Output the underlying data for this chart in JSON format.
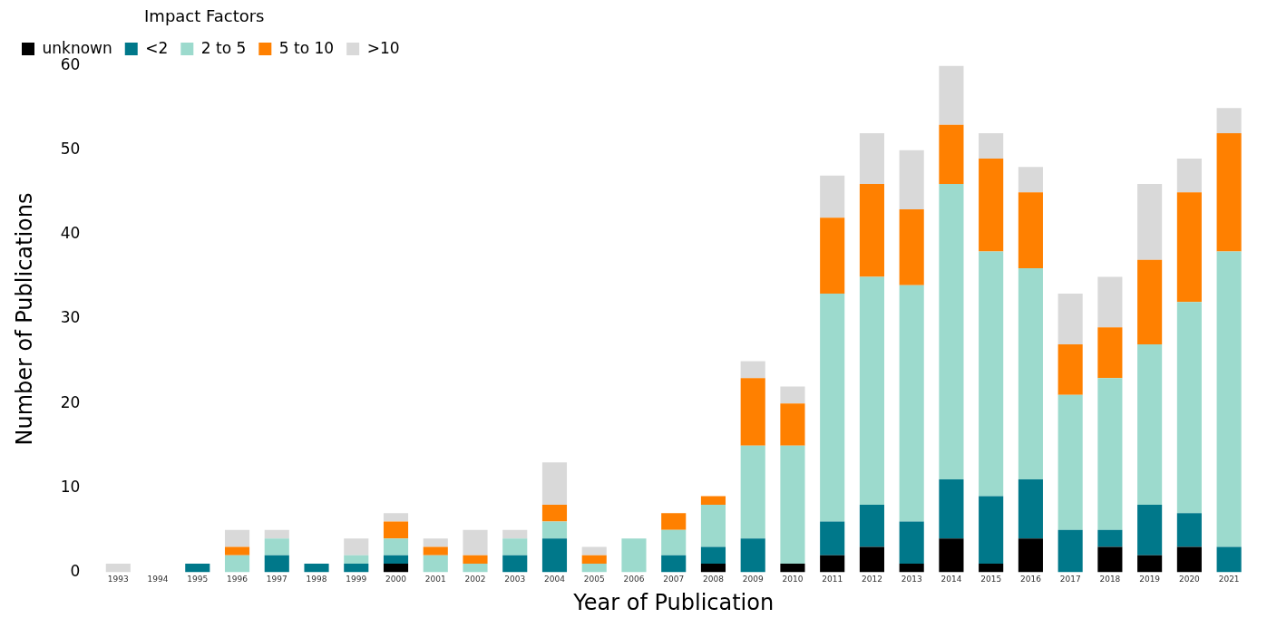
{
  "chart_data": {
    "type": "bar",
    "stacked": true,
    "xlabel": "Year of Publication",
    "ylabel": "Number of Publications",
    "legend_title": "Impact Factors",
    "legend": "top left",
    "grid": false,
    "categories": [
      "1993",
      "1994",
      "1995",
      "1996",
      "1997",
      "1998",
      "1999",
      "2000",
      "2001",
      "2002",
      "2003",
      "2004",
      "2005",
      "2006",
      "2007",
      "2008",
      "2009",
      "2010",
      "2011",
      "2012",
      "2013",
      "2014",
      "2015",
      "2016",
      "2017",
      "2018",
      "2019",
      "2020",
      "2021"
    ],
    "ylim": [
      0,
      60
    ],
    "yticks": [
      0,
      10,
      20,
      30,
      40,
      50,
      60
    ],
    "series": [
      {
        "name": "unknown",
        "color": "#000000",
        "values": [
          0,
          0,
          0,
          0,
          0,
          0,
          0,
          1,
          0,
          0,
          0,
          0,
          0,
          0,
          0,
          1,
          0,
          1,
          2,
          3,
          1,
          4,
          1,
          4,
          0,
          3,
          2,
          3,
          0
        ]
      },
      {
        "name": "<2",
        "color": "#00788a",
        "values": [
          0,
          0,
          1,
          0,
          2,
          1,
          1,
          1,
          0,
          0,
          2,
          4,
          0,
          0,
          2,
          2,
          4,
          0,
          4,
          5,
          5,
          7,
          8,
          7,
          5,
          2,
          6,
          4,
          3
        ]
      },
      {
        "name": "2 to 5",
        "color": "#9cdacd",
        "values": [
          0,
          0,
          0,
          2,
          2,
          0,
          1,
          2,
          2,
          1,
          2,
          2,
          1,
          4,
          3,
          5,
          11,
          14,
          27,
          27,
          28,
          35,
          29,
          25,
          16,
          18,
          19,
          25,
          35
        ]
      },
      {
        "name": "5 to 10",
        "color": "#ff8000",
        "values": [
          0,
          0,
          0,
          1,
          0,
          0,
          0,
          2,
          1,
          1,
          0,
          2,
          1,
          0,
          2,
          1,
          8,
          5,
          9,
          11,
          9,
          7,
          11,
          9,
          6,
          6,
          10,
          13,
          14
        ]
      },
      {
        "name": ">10",
        "color": "#d9d9d9",
        "values": [
          1,
          0,
          0,
          2,
          1,
          0,
          2,
          1,
          1,
          3,
          1,
          5,
          1,
          0,
          0,
          0,
          2,
          2,
          5,
          6,
          7,
          7,
          3,
          3,
          6,
          6,
          9,
          4,
          3
        ]
      }
    ]
  }
}
